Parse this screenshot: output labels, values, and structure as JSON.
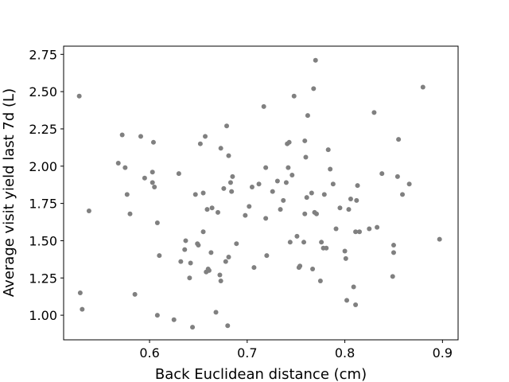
{
  "chart_data": {
    "type": "scatter",
    "xlabel": "Back Euclidean distance (cm)",
    "ylabel": "Average visit yield last 7d (L)",
    "xlim": [
      0.512,
      0.916
    ],
    "ylim": [
      0.835,
      2.805
    ],
    "xticks": [
      0.6,
      0.7,
      0.8,
      0.9
    ],
    "yticks": [
      1.0,
      1.25,
      1.5,
      1.75,
      2.0,
      2.25,
      2.5,
      2.75
    ],
    "xtick_labels": [
      "0.6",
      "0.7",
      "0.8",
      "0.9"
    ],
    "ytick_labels": [
      "1.00",
      "1.25",
      "1.50",
      "1.75",
      "2.00",
      "2.25",
      "2.50",
      "2.75"
    ],
    "grid": false,
    "marker_color": "#808080",
    "points": [
      {
        "x": 0.528,
        "y": 2.47
      },
      {
        "x": 0.529,
        "y": 1.15
      },
      {
        "x": 0.531,
        "y": 1.04
      },
      {
        "x": 0.538,
        "y": 1.7
      },
      {
        "x": 0.568,
        "y": 2.02
      },
      {
        "x": 0.572,
        "y": 2.21
      },
      {
        "x": 0.575,
        "y": 1.99
      },
      {
        "x": 0.577,
        "y": 1.81
      },
      {
        "x": 0.58,
        "y": 1.68
      },
      {
        "x": 0.585,
        "y": 1.14
      },
      {
        "x": 0.591,
        "y": 2.2
      },
      {
        "x": 0.595,
        "y": 1.92
      },
      {
        "x": 0.603,
        "y": 1.96
      },
      {
        "x": 0.603,
        "y": 1.89
      },
      {
        "x": 0.605,
        "y": 1.86
      },
      {
        "x": 0.604,
        "y": 2.16
      },
      {
        "x": 0.608,
        "y": 1.62
      },
      {
        "x": 0.608,
        "y": 1.0
      },
      {
        "x": 0.61,
        "y": 1.4
      },
      {
        "x": 0.625,
        "y": 0.97
      },
      {
        "x": 0.63,
        "y": 1.95
      },
      {
        "x": 0.632,
        "y": 1.36
      },
      {
        "x": 0.636,
        "y": 1.44
      },
      {
        "x": 0.637,
        "y": 1.5
      },
      {
        "x": 0.641,
        "y": 1.25
      },
      {
        "x": 0.642,
        "y": 1.35
      },
      {
        "x": 0.644,
        "y": 0.92
      },
      {
        "x": 0.647,
        "y": 1.81
      },
      {
        "x": 0.649,
        "y": 1.48
      },
      {
        "x": 0.65,
        "y": 1.47
      },
      {
        "x": 0.652,
        "y": 2.15
      },
      {
        "x": 0.655,
        "y": 1.82
      },
      {
        "x": 0.655,
        "y": 1.56
      },
      {
        "x": 0.657,
        "y": 2.2
      },
      {
        "x": 0.658,
        "y": 1.29
      },
      {
        "x": 0.659,
        "y": 1.71
      },
      {
        "x": 0.66,
        "y": 1.31
      },
      {
        "x": 0.661,
        "y": 1.3
      },
      {
        "x": 0.663,
        "y": 1.42
      },
      {
        "x": 0.664,
        "y": 1.72
      },
      {
        "x": 0.668,
        "y": 1.02
      },
      {
        "x": 0.67,
        "y": 1.69
      },
      {
        "x": 0.672,
        "y": 1.27
      },
      {
        "x": 0.673,
        "y": 1.23
      },
      {
        "x": 0.673,
        "y": 2.12
      },
      {
        "x": 0.676,
        "y": 1.85
      },
      {
        "x": 0.678,
        "y": 1.36
      },
      {
        "x": 0.679,
        "y": 2.27
      },
      {
        "x": 0.68,
        "y": 0.93
      },
      {
        "x": 0.681,
        "y": 2.07
      },
      {
        "x": 0.681,
        "y": 1.39
      },
      {
        "x": 0.683,
        "y": 1.89
      },
      {
        "x": 0.684,
        "y": 1.83
      },
      {
        "x": 0.685,
        "y": 1.93
      },
      {
        "x": 0.689,
        "y": 1.48
      },
      {
        "x": 0.698,
        "y": 1.67
      },
      {
        "x": 0.702,
        "y": 1.73
      },
      {
        "x": 0.705,
        "y": 1.86
      },
      {
        "x": 0.707,
        "y": 1.32
      },
      {
        "x": 0.712,
        "y": 1.88
      },
      {
        "x": 0.717,
        "y": 2.4
      },
      {
        "x": 0.719,
        "y": 1.65
      },
      {
        "x": 0.719,
        "y": 1.99
      },
      {
        "x": 0.72,
        "y": 1.4
      },
      {
        "x": 0.726,
        "y": 1.83
      },
      {
        "x": 0.731,
        "y": 1.9
      },
      {
        "x": 0.734,
        "y": 1.71
      },
      {
        "x": 0.737,
        "y": 1.77
      },
      {
        "x": 0.74,
        "y": 1.89
      },
      {
        "x": 0.741,
        "y": 2.15
      },
      {
        "x": 0.742,
        "y": 1.99
      },
      {
        "x": 0.743,
        "y": 2.16
      },
      {
        "x": 0.744,
        "y": 1.49
      },
      {
        "x": 0.746,
        "y": 1.94
      },
      {
        "x": 0.748,
        "y": 2.47
      },
      {
        "x": 0.751,
        "y": 1.53
      },
      {
        "x": 0.753,
        "y": 1.32
      },
      {
        "x": 0.754,
        "y": 1.33
      },
      {
        "x": 0.758,
        "y": 1.49
      },
      {
        "x": 0.759,
        "y": 1.68
      },
      {
        "x": 0.759,
        "y": 2.17
      },
      {
        "x": 0.76,
        "y": 2.06
      },
      {
        "x": 0.761,
        "y": 1.79
      },
      {
        "x": 0.762,
        "y": 2.34
      },
      {
        "x": 0.766,
        "y": 1.82
      },
      {
        "x": 0.767,
        "y": 1.31
      },
      {
        "x": 0.768,
        "y": 2.52
      },
      {
        "x": 0.769,
        "y": 1.69
      },
      {
        "x": 0.77,
        "y": 2.71
      },
      {
        "x": 0.771,
        "y": 1.68
      },
      {
        "x": 0.775,
        "y": 1.23
      },
      {
        "x": 0.776,
        "y": 1.49
      },
      {
        "x": 0.778,
        "y": 1.45
      },
      {
        "x": 0.779,
        "y": 1.81
      },
      {
        "x": 0.781,
        "y": 1.45
      },
      {
        "x": 0.783,
        "y": 2.11
      },
      {
        "x": 0.785,
        "y": 1.98
      },
      {
        "x": 0.788,
        "y": 1.88
      },
      {
        "x": 0.791,
        "y": 1.58
      },
      {
        "x": 0.795,
        "y": 1.72
      },
      {
        "x": 0.8,
        "y": 1.43
      },
      {
        "x": 0.801,
        "y": 1.38
      },
      {
        "x": 0.802,
        "y": 1.1
      },
      {
        "x": 0.804,
        "y": 1.71
      },
      {
        "x": 0.806,
        "y": 1.78
      },
      {
        "x": 0.809,
        "y": 1.19
      },
      {
        "x": 0.811,
        "y": 1.56
      },
      {
        "x": 0.811,
        "y": 1.07
      },
      {
        "x": 0.812,
        "y": 1.77
      },
      {
        "x": 0.813,
        "y": 1.87
      },
      {
        "x": 0.815,
        "y": 1.56
      },
      {
        "x": 0.825,
        "y": 1.58
      },
      {
        "x": 0.83,
        "y": 2.36
      },
      {
        "x": 0.833,
        "y": 1.59
      },
      {
        "x": 0.838,
        "y": 1.95
      },
      {
        "x": 0.849,
        "y": 1.26
      },
      {
        "x": 0.85,
        "y": 1.47
      },
      {
        "x": 0.85,
        "y": 1.42
      },
      {
        "x": 0.854,
        "y": 1.93
      },
      {
        "x": 0.855,
        "y": 2.18
      },
      {
        "x": 0.859,
        "y": 1.81
      },
      {
        "x": 0.866,
        "y": 1.88
      },
      {
        "x": 0.88,
        "y": 2.53
      },
      {
        "x": 0.897,
        "y": 1.51
      }
    ]
  }
}
